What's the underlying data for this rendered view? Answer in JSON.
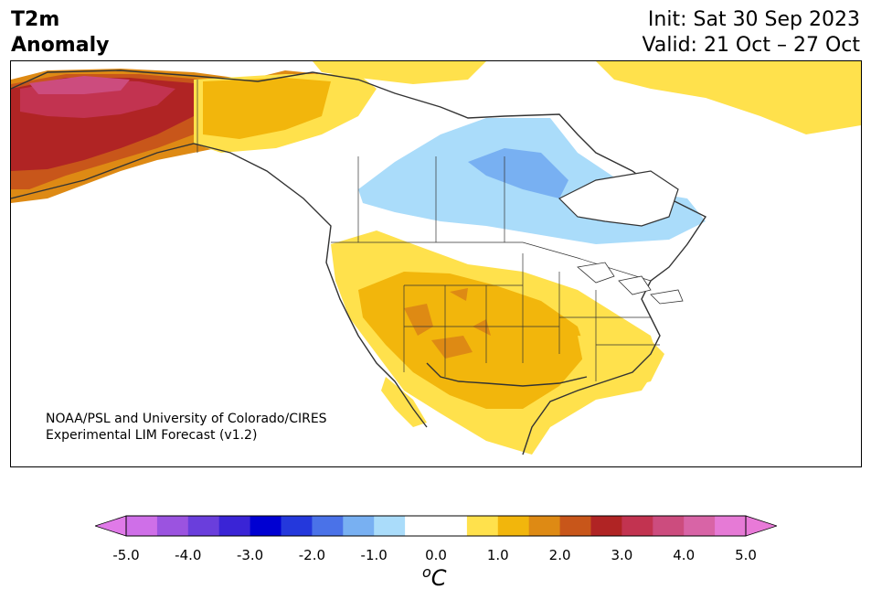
{
  "title": {
    "line1": "T2m",
    "line2": "Anomaly"
  },
  "init": "Init: Sat 30 Sep 2023",
  "valid": "Valid: 21 Oct – 27 Oct",
  "credit": {
    "line1": "NOAA/PSL and University of Colorado/CIRES",
    "line2": "Experimental LIM Forecast (v1.2)"
  },
  "colorbar": {
    "ticks": [
      "-5.0",
      "-4.0",
      "-3.0",
      "-2.0",
      "-1.0",
      "0.0",
      "1.0",
      "2.0",
      "3.0",
      "4.0",
      "5.0"
    ],
    "unit_sup": "o",
    "unit": "C",
    "colors": [
      "#cf6fe8",
      "#9b53e0",
      "#6a3edc",
      "#3a24d6",
      "#0000d2",
      "#2438dc",
      "#4a72e8",
      "#78b0f2",
      "#aadcfa",
      "#ffffff",
      "#ffffff",
      "#ffe14c",
      "#f2b60c",
      "#de8a14",
      "#c8561a",
      "#b02424",
      "#c23350",
      "#cc4c7e",
      "#d864a6",
      "#e67ad6"
    ],
    "under_color": "#e07ae8",
    "over_color": "#e87ad8"
  },
  "map": {
    "region": "North America",
    "anomaly_areas": [
      {
        "region": "Alaska",
        "level": "+4 to +5"
      },
      {
        "region": "Northern Canada / Yukon",
        "level": "+1 to +3"
      },
      {
        "region": "Central Canada / Great Lakes",
        "level": "-1 to -2"
      },
      {
        "region": "Southwestern US / Plains",
        "level": "+1 to +2"
      }
    ]
  }
}
